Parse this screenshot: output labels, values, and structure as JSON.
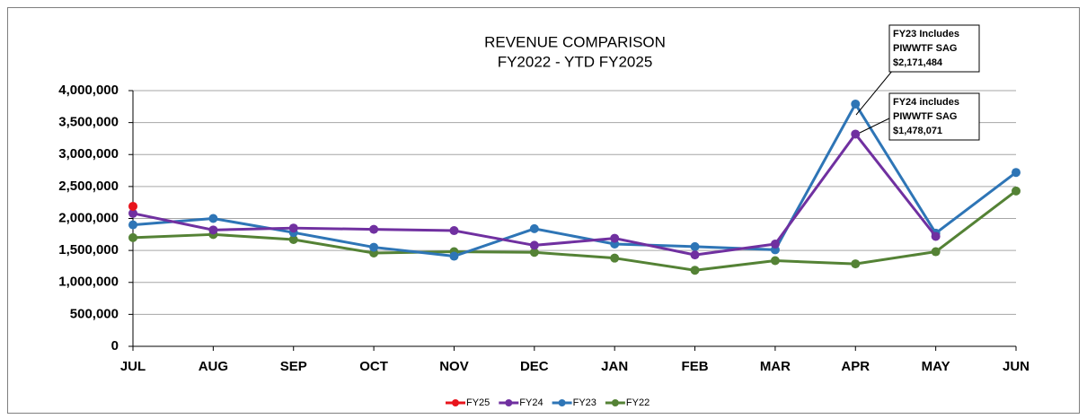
{
  "chart_data": {
    "type": "line",
    "title": "REVENUE COMPARISON",
    "subtitle": "FY2022 - YTD FY2025",
    "categories": [
      "JUL",
      "AUG",
      "SEP",
      "OCT",
      "NOV",
      "DEC",
      "JAN",
      "FEB",
      "MAR",
      "APR",
      "MAY",
      "JUN"
    ],
    "series": [
      {
        "name": "FY25",
        "color": "#e8141c",
        "values": [
          2190000,
          null,
          null,
          null,
          null,
          null,
          null,
          null,
          null,
          null,
          null,
          null
        ]
      },
      {
        "name": "FY24",
        "color": "#7030a0",
        "values": [
          2080000,
          1820000,
          1850000,
          1830000,
          1810000,
          1580000,
          1690000,
          1430000,
          1600000,
          3320000,
          1720000,
          null
        ]
      },
      {
        "name": "FY23",
        "color": "#2e75b6",
        "values": [
          1900000,
          2000000,
          1780000,
          1550000,
          1410000,
          1840000,
          1600000,
          1560000,
          1510000,
          3790000,
          1770000,
          2720000
        ]
      },
      {
        "name": "FY22",
        "color": "#548235",
        "values": [
          1700000,
          1750000,
          1670000,
          1460000,
          1480000,
          1470000,
          1380000,
          1190000,
          1340000,
          1290000,
          1480000,
          2430000
        ]
      }
    ],
    "ylim": [
      0,
      4000000
    ],
    "yticks": [
      0,
      {
        "value": 500000,
        "label": "500,000"
      },
      {
        "value": 1000000,
        "label": "1,000,000"
      },
      {
        "value": 1500000,
        "label": "1,500,000"
      },
      {
        "value": 2000000,
        "label": "2,000,000"
      },
      {
        "value": 2500000,
        "label": "2,500,000"
      },
      {
        "value": 3000000,
        "label": "3,000,000"
      },
      {
        "value": 3500000,
        "label": "3,500,000"
      },
      {
        "value": 4000000,
        "label": "4,000,000"
      }
    ],
    "grid": true,
    "legend": "bottom",
    "annotations": [
      {
        "lines": [
          "FY23 Includes",
          "PIWWTF SAG",
          "$2,171,484"
        ]
      },
      {
        "lines": [
          "FY24 includes",
          "PIWWTF SAG",
          "$1,478,071"
        ]
      }
    ]
  }
}
